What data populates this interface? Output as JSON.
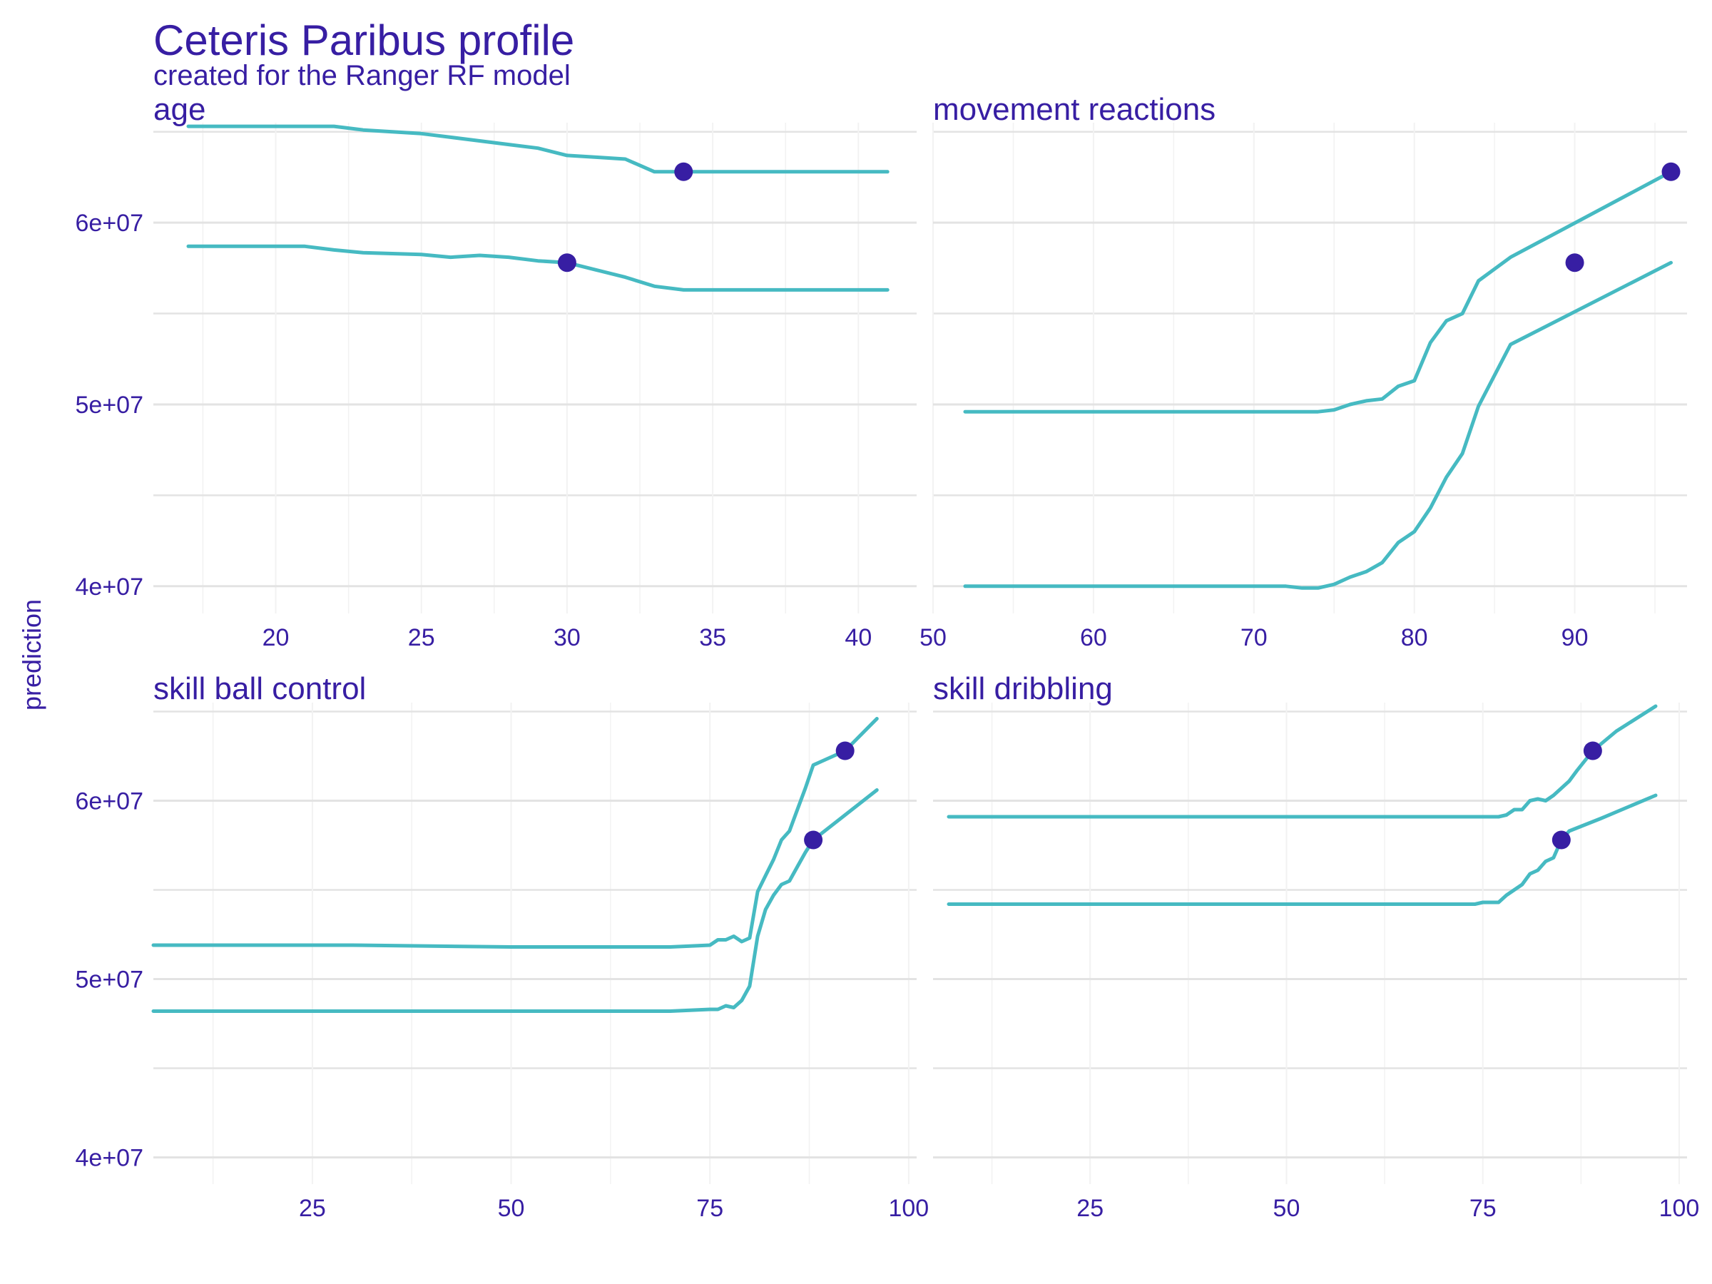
{
  "title": "Ceteris Paribus profile",
  "subtitle": "created for the Ranger RF model",
  "colors": {
    "line": "#46BAC2",
    "point": "#371EA3",
    "text": "#371EA3",
    "grid_major": "#E3E3E3",
    "grid_minor": "#F2F2F2"
  },
  "chart_data": {
    "type": "line",
    "ylabel": "prediction",
    "ylim": [
      38500000,
      65500000
    ],
    "yticks": [
      40000000,
      50000000,
      60000000
    ],
    "ytick_labels": [
      "4e+07",
      "5e+07",
      "6e+07"
    ],
    "grid": true,
    "panels": [
      {
        "name": "age",
        "xlim": [
          15.8,
          42
        ],
        "xticks": [
          20,
          25,
          30,
          35,
          40
        ],
        "xtick_labels": [
          "20",
          "25",
          "30",
          "35",
          "40"
        ],
        "series": [
          {
            "x": [
              17,
              18,
              19,
              20,
              21,
              22,
              23,
              24,
              25,
              26,
              27,
              28,
              29,
              30,
              31,
              32,
              33,
              34,
              35,
              36,
              37,
              38,
              39,
              40,
              41
            ],
            "y": [
              65300000,
              65300000,
              65300000,
              65300000,
              65300000,
              65300000,
              65100000,
              65000000,
              64900000,
              64700000,
              64500000,
              64300000,
              64100000,
              63700000,
              63600000,
              63500000,
              62800000,
              62800000,
              62800000,
              62800000,
              62800000,
              62800000,
              62800000,
              62800000,
              62800000
            ]
          },
          {
            "x": [
              17,
              18,
              19,
              20,
              21,
              22,
              23,
              24,
              25,
              26,
              27,
              28,
              29,
              30,
              31,
              32,
              33,
              34,
              35,
              36,
              37,
              38,
              39,
              40,
              41
            ],
            "y": [
              58700000,
              58700000,
              58700000,
              58700000,
              58700000,
              58500000,
              58350000,
              58300000,
              58250000,
              58100000,
              58200000,
              58100000,
              57900000,
              57800000,
              57400000,
              57000000,
              56500000,
              56300000,
              56300000,
              56300000,
              56300000,
              56300000,
              56300000,
              56300000,
              56300000
            ]
          }
        ],
        "points": [
          {
            "x": 34,
            "y": 62800000
          },
          {
            "x": 30,
            "y": 57800000
          }
        ]
      },
      {
        "name": "movement_reactions",
        "xlim": [
          50,
          97
        ],
        "xticks": [
          50,
          60,
          70,
          80,
          90
        ],
        "xtick_labels": [
          "50",
          "60",
          "70",
          "80",
          "90"
        ],
        "series": [
          {
            "x": [
              52,
              60,
              70,
              74,
              75,
              76,
              77,
              78,
              79,
              80,
              81,
              82,
              83,
              84,
              86,
              96
            ],
            "y": [
              49600000,
              49600000,
              49600000,
              49600000,
              49700000,
              50000000,
              50200000,
              50300000,
              51000000,
              51300000,
              53400000,
              54600000,
              55000000,
              56800000,
              58100000,
              62800000
            ]
          },
          {
            "x": [
              52,
              60,
              70,
              72,
              73,
              74,
              75,
              76,
              77,
              78,
              79,
              80,
              81,
              82,
              83,
              84,
              86,
              96
            ],
            "y": [
              40000000,
              40000000,
              40000000,
              40000000,
              39900000,
              39900000,
              40100000,
              40500000,
              40800000,
              41300000,
              42400000,
              43000000,
              44300000,
              46000000,
              47300000,
              49900000,
              53300000,
              57800000
            ]
          }
        ],
        "points": [
          {
            "x": 96,
            "y": 62800000
          },
          {
            "x": 90,
            "y": 57800000
          }
        ]
      },
      {
        "name": "skill_ball_control",
        "xlim": [
          5,
          101
        ],
        "xticks": [
          25,
          50,
          75,
          100
        ],
        "xtick_labels": [
          "25",
          "50",
          "75",
          "100"
        ],
        "series": [
          {
            "x": [
              5,
              30,
              50,
              70,
              75,
              76,
              77,
              78,
              79,
              80,
              81,
              82,
              83,
              84,
              85,
              86,
              87,
              88,
              89,
              92,
              96
            ],
            "y": [
              51900000,
              51900000,
              51800000,
              51800000,
              51900000,
              52200000,
              52200000,
              52400000,
              52100000,
              52300000,
              54900000,
              55800000,
              56700000,
              57800000,
              58300000,
              59500000,
              60700000,
              62000000,
              62200000,
              62800000,
              64600000
            ]
          },
          {
            "x": [
              5,
              30,
              50,
              70,
              75,
              76,
              77,
              78,
              79,
              80,
              81,
              82,
              83,
              84,
              85,
              86,
              87,
              88,
              92,
              96
            ],
            "y": [
              48200000,
              48200000,
              48200000,
              48200000,
              48300000,
              48300000,
              48500000,
              48400000,
              48800000,
              49600000,
              52400000,
              53900000,
              54700000,
              55300000,
              55500000,
              56300000,
              57100000,
              57800000,
              59200000,
              60600000
            ]
          }
        ],
        "points": [
          {
            "x": 92,
            "y": 62800000
          },
          {
            "x": 88,
            "y": 57800000
          }
        ]
      },
      {
        "name": "skill_dribbling",
        "xlim": [
          5,
          101
        ],
        "xticks": [
          25,
          50,
          75,
          100
        ],
        "xtick_labels": [
          "25",
          "50",
          "75",
          "100"
        ],
        "series": [
          {
            "x": [
              7,
              30,
              50,
              70,
              77,
              78,
              79,
              80,
              81,
              82,
              83,
              84,
              85,
              86,
              87,
              89,
              92,
              97
            ],
            "y": [
              59100000,
              59100000,
              59100000,
              59100000,
              59100000,
              59200000,
              59500000,
              59500000,
              60000000,
              60100000,
              60000000,
              60300000,
              60700000,
              61100000,
              61700000,
              62800000,
              63900000,
              65300000
            ]
          },
          {
            "x": [
              7,
              30,
              50,
              70,
              74,
              75,
              77,
              78,
              79,
              80,
              81,
              82,
              83,
              84,
              85,
              86,
              90,
              97
            ],
            "y": [
              54200000,
              54200000,
              54200000,
              54200000,
              54200000,
              54300000,
              54300000,
              54700000,
              55000000,
              55300000,
              55900000,
              56100000,
              56600000,
              56800000,
              57800000,
              58300000,
              59000000,
              60300000
            ]
          }
        ],
        "points": [
          {
            "x": 89,
            "y": 62800000
          },
          {
            "x": 85,
            "y": 57800000
          }
        ]
      }
    ],
    "strip_labels": [
      "age",
      "movement  reactions",
      "skill  ball  control",
      "skill  dribbling"
    ]
  }
}
